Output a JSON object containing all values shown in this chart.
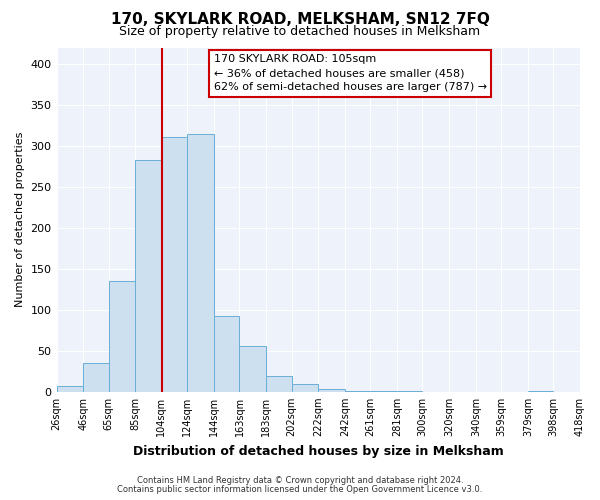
{
  "title": "170, SKYLARK ROAD, MELKSHAM, SN12 7FQ",
  "subtitle": "Size of property relative to detached houses in Melksham",
  "xlabel": "Distribution of detached houses by size in Melksham",
  "ylabel": "Number of detached properties",
  "bin_edges": [
    26,
    46,
    65,
    85,
    104,
    124,
    144,
    163,
    183,
    202,
    222,
    242,
    261,
    281,
    300,
    320,
    340,
    359,
    379,
    398,
    418
  ],
  "bar_heights": [
    7,
    35,
    135,
    283,
    311,
    315,
    92,
    56,
    19,
    10,
    3,
    1,
    1,
    1,
    0,
    0,
    0,
    0,
    1,
    0
  ],
  "bar_color": "#cde0f0",
  "bar_edge_color": "#6aaed6",
  "property_value": 105,
  "vline_color": "#cc0000",
  "annotation_text_line1": "170 SKYLARK ROAD: 105sqm",
  "annotation_text_line2": "← 36% of detached houses are smaller (458)",
  "annotation_text_line3": "62% of semi-detached houses are larger (787) →",
  "annotation_box_edgecolor": "#cc0000",
  "annotation_box_facecolor": "#ffffff",
  "ylim": [
    0,
    420
  ],
  "yticks": [
    0,
    50,
    100,
    150,
    200,
    250,
    300,
    350,
    400
  ],
  "tick_labels": [
    "26sqm",
    "46sqm",
    "65sqm",
    "85sqm",
    "104sqm",
    "124sqm",
    "144sqm",
    "163sqm",
    "183sqm",
    "202sqm",
    "222sqm",
    "242sqm",
    "261sqm",
    "281sqm",
    "300sqm",
    "320sqm",
    "340sqm",
    "359sqm",
    "379sqm",
    "398sqm",
    "418sqm"
  ],
  "footnote_line1": "Contains HM Land Registry data © Crown copyright and database right 2024.",
  "footnote_line2": "Contains public sector information licensed under the Open Government Licence v3.0.",
  "bg_color": "#ffffff",
  "plot_bg_color": "#eef3fb",
  "grid_color": "#ffffff",
  "title_fontsize": 11,
  "subtitle_fontsize": 9,
  "ylabel_fontsize": 8,
  "xlabel_fontsize": 9,
  "ytick_fontsize": 8,
  "xtick_fontsize": 7,
  "annot_fontsize": 8,
  "footnote_fontsize": 6
}
